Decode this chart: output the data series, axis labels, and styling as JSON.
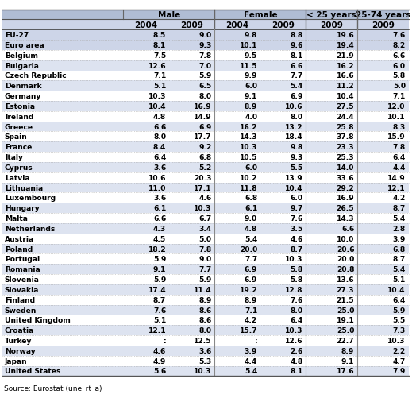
{
  "col_headers": [
    "",
    "2004",
    "2009",
    "2004",
    "2009",
    "2009",
    "2009"
  ],
  "group_headers": [
    {
      "label": "",
      "cols": [
        0
      ]
    },
    {
      "label": "Male",
      "cols": [
        1,
        2
      ]
    },
    {
      "label": "Female",
      "cols": [
        3,
        4
      ]
    },
    {
      "label": "< 25 years",
      "cols": [
        5
      ]
    },
    {
      "label": "25-74 years",
      "cols": [
        6
      ]
    }
  ],
  "rows": [
    [
      "EU-27",
      "8.5",
      "9.0",
      "9.8",
      "8.8",
      "19.6",
      "7.6"
    ],
    [
      "Euro area",
      "8.1",
      "9.3",
      "10.1",
      "9.6",
      "19.4",
      "8.2"
    ],
    [
      "Belgium",
      "7.5",
      "7.8",
      "9.5",
      "8.1",
      "21.9",
      "6.6"
    ],
    [
      "Bulgaria",
      "12.6",
      "7.0",
      "11.5",
      "6.6",
      "16.2",
      "6.0"
    ],
    [
      "Czech Republic",
      "7.1",
      "5.9",
      "9.9",
      "7.7",
      "16.6",
      "5.8"
    ],
    [
      "Denmark",
      "5.1",
      "6.5",
      "6.0",
      "5.4",
      "11.2",
      "5.0"
    ],
    [
      "Germany",
      "10.3",
      "8.0",
      "9.1",
      "6.9",
      "10.4",
      "7.1"
    ],
    [
      "Estonia",
      "10.4",
      "16.9",
      "8.9",
      "10.6",
      "27.5",
      "12.0"
    ],
    [
      "Ireland",
      "4.8",
      "14.9",
      "4.0",
      "8.0",
      "24.4",
      "10.1"
    ],
    [
      "Greece",
      "6.6",
      "6.9",
      "16.2",
      "13.2",
      "25.8",
      "8.3"
    ],
    [
      "Spain",
      "8.0",
      "17.7",
      "14.3",
      "18.4",
      "37.8",
      "15.9"
    ],
    [
      "France",
      "8.4",
      "9.2",
      "10.3",
      "9.8",
      "23.3",
      "7.8"
    ],
    [
      "Italy",
      "6.4",
      "6.8",
      "10.5",
      "9.3",
      "25.3",
      "6.4"
    ],
    [
      "Cyprus",
      "3.6",
      "5.2",
      "6.0",
      "5.5",
      "14.0",
      "4.4"
    ],
    [
      "Latvia",
      "10.6",
      "20.3",
      "10.2",
      "13.9",
      "33.6",
      "14.9"
    ],
    [
      "Lithuania",
      "11.0",
      "17.1",
      "11.8",
      "10.4",
      "29.2",
      "12.1"
    ],
    [
      "Luxembourg",
      "3.6",
      "4.6",
      "6.8",
      "6.0",
      "16.9",
      "4.2"
    ],
    [
      "Hungary",
      "6.1",
      "10.3",
      "6.1",
      "9.7",
      "26.5",
      "8.7"
    ],
    [
      "Malta",
      "6.6",
      "6.7",
      "9.0",
      "7.6",
      "14.3",
      "5.4"
    ],
    [
      "Netherlands",
      "4.3",
      "3.4",
      "4.8",
      "3.5",
      "6.6",
      "2.8"
    ],
    [
      "Austria",
      "4.5",
      "5.0",
      "5.4",
      "4.6",
      "10.0",
      "3.9"
    ],
    [
      "Poland",
      "18.2",
      "7.8",
      "20.0",
      "8.7",
      "20.6",
      "6.8"
    ],
    [
      "Portugal",
      "5.9",
      "9.0",
      "7.7",
      "10.3",
      "20.0",
      "8.7"
    ],
    [
      "Romania",
      "9.1",
      "7.7",
      "6.9",
      "5.8",
      "20.8",
      "5.4"
    ],
    [
      "Slovenia",
      "5.9",
      "5.9",
      "6.9",
      "5.8",
      "13.6",
      "5.1"
    ],
    [
      "Slovakia",
      "17.4",
      "11.4",
      "19.2",
      "12.8",
      "27.3",
      "10.4"
    ],
    [
      "Finland",
      "8.7",
      "8.9",
      "8.9",
      "7.6",
      "21.5",
      "6.4"
    ],
    [
      "Sweden",
      "7.6",
      "8.6",
      "7.1",
      "8.0",
      "25.0",
      "5.9"
    ],
    [
      "United Kingdom",
      "5.1",
      "8.6",
      "4.2",
      "6.4",
      "19.1",
      "5.5"
    ],
    [
      "Croatia",
      "12.1",
      "8.0",
      "15.7",
      "10.3",
      "25.0",
      "7.3"
    ],
    [
      "Turkey",
      ":",
      "12.5",
      ":",
      "12.6",
      "22.7",
      "10.3"
    ],
    [
      "Norway",
      "4.6",
      "3.6",
      "3.9",
      "2.6",
      "8.9",
      "2.2"
    ],
    [
      "Japan",
      "4.9",
      "5.3",
      "4.4",
      "4.8",
      "9.1",
      "4.7"
    ],
    [
      "United States",
      "5.6",
      "10.3",
      "5.4",
      "8.1",
      "17.6",
      "7.9"
    ]
  ],
  "source_text": "Source: Eurostat (une_rt_a)",
  "header_bg": "#b0bdd4",
  "subheader_bg": "#cdd5e8",
  "row_bg_white": "#ffffff",
  "row_bg_blue": "#dde3f0",
  "divider_color": "#888888",
  "dotted_color": "#aaaaaa",
  "fig_width": 5.24,
  "fig_height": 5.02,
  "dpi": 100
}
